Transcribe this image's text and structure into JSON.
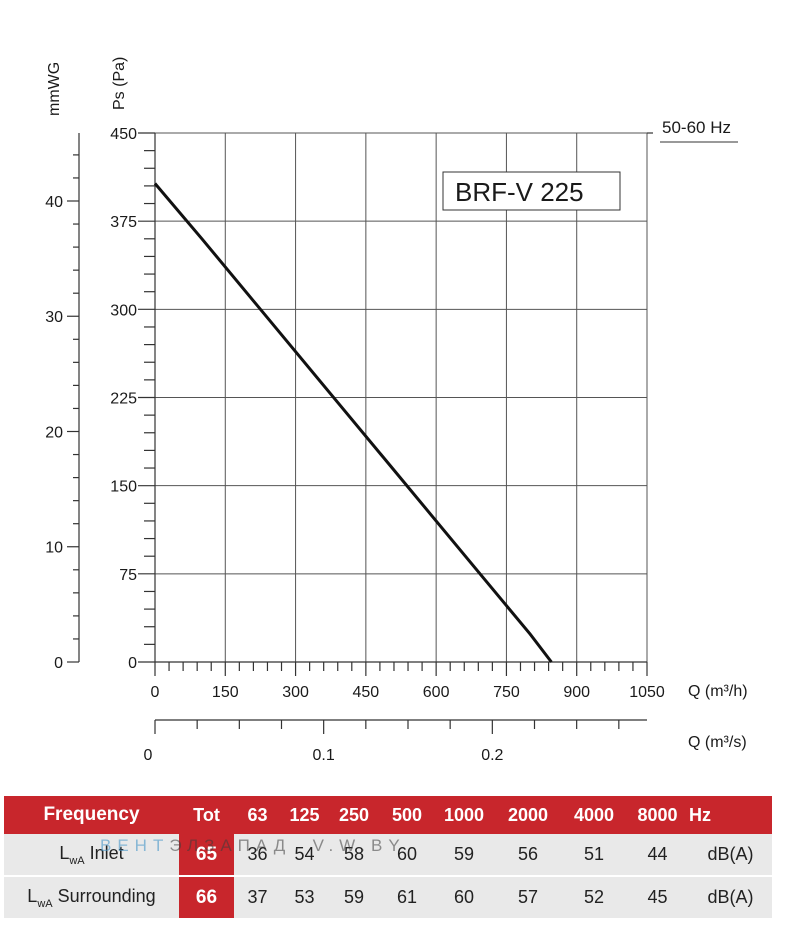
{
  "chart_data": {
    "type": "line",
    "title": "BRF-V 225",
    "frequency_note": "50-60 Hz",
    "x": [
      0,
      100,
      200,
      300,
      400,
      500,
      600,
      700,
      750,
      800,
      846
    ],
    "y": [
      407,
      360,
      312,
      264,
      216,
      168,
      120,
      72,
      48,
      24,
      0
    ],
    "xlabel": "Q (m³/h)",
    "xlim": [
      0,
      1050
    ],
    "xticks": [
      "0",
      "150",
      "300",
      "450",
      "600",
      "750",
      "900",
      "1050"
    ],
    "xlabel2": "Q (m³/s)",
    "x2lim": [
      0,
      0.2917
    ],
    "x2ticks": [
      "0",
      "0.1",
      "0.2"
    ],
    "ylabel": "Ps (Pa)",
    "ylim": [
      0,
      450
    ],
    "yticks": [
      "0",
      "75",
      "150",
      "225",
      "300",
      "375",
      "450"
    ],
    "ylabel2": "mmWG",
    "y2lim": [
      0,
      45.9
    ],
    "y2ticks": [
      "0",
      "10",
      "20",
      "30",
      "40"
    ],
    "grid": true
  },
  "table": {
    "header": [
      "Frequency",
      "Tot",
      "63",
      "125",
      "250",
      "500",
      "1000",
      "2000",
      "4000",
      "8000",
      "Hz"
    ],
    "rows": [
      {
        "label_main": "L",
        "label_sub": "wA",
        "label_rest": "Inlet",
        "values": [
          "65",
          "36",
          "54",
          "58",
          "60",
          "59",
          "56",
          "51",
          "44"
        ],
        "unit": "dB(A)"
      },
      {
        "label_main": "L",
        "label_sub": "wA",
        "label_rest": "Surrounding",
        "values": [
          "66",
          "37",
          "53",
          "59",
          "61",
          "60",
          "57",
          "52",
          "45"
        ],
        "unit": "dB(A)"
      }
    ]
  },
  "watermark": {
    "part1": "ВЕНТ",
    "part2": "ЭЛЗАПАД",
    "part3": "V.W.BY"
  }
}
